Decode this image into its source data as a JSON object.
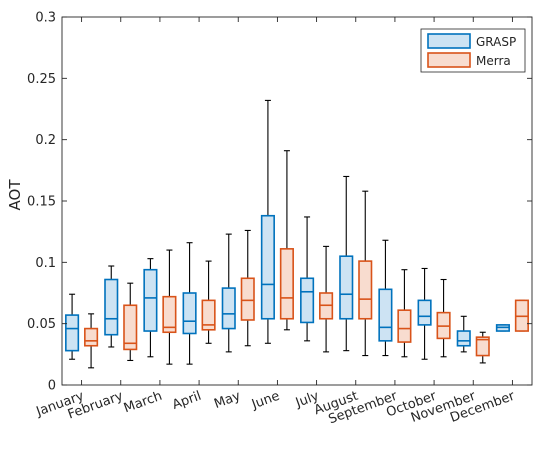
{
  "chart_data": {
    "type": "boxplot",
    "ylabel": "AOT",
    "xlabel": "",
    "ylim": [
      0,
      0.3
    ],
    "yticks": [
      0,
      0.05,
      0.1,
      0.15,
      0.2,
      0.25,
      0.3
    ],
    "ytick_labels": [
      "0",
      "0.05",
      "0.1",
      "0.15",
      "0.2",
      "0.25",
      "0.3"
    ],
    "categories": [
      "January",
      "February",
      "March",
      "April",
      "May",
      "June",
      "July",
      "August",
      "September",
      "October",
      "November",
      "December"
    ],
    "grid": false,
    "legend_position": "top-right",
    "series": [
      {
        "name": "GRASP",
        "edge_color": "#0072BD",
        "fill_color": "#CDE3F3",
        "boxes": [
          {
            "min": 0.021,
            "q1": 0.028,
            "median": 0.046,
            "q3": 0.057,
            "max": 0.074
          },
          {
            "min": 0.031,
            "q1": 0.041,
            "median": 0.054,
            "q3": 0.086,
            "max": 0.097
          },
          {
            "min": 0.023,
            "q1": 0.044,
            "median": 0.071,
            "q3": 0.094,
            "max": 0.103
          },
          {
            "min": 0.017,
            "q1": 0.042,
            "median": 0.052,
            "q3": 0.075,
            "max": 0.116
          },
          {
            "min": 0.027,
            "q1": 0.046,
            "median": 0.058,
            "q3": 0.079,
            "max": 0.123
          },
          {
            "min": 0.034,
            "q1": 0.054,
            "median": 0.082,
            "q3": 0.138,
            "max": 0.232
          },
          {
            "min": 0.036,
            "q1": 0.051,
            "median": 0.076,
            "q3": 0.087,
            "max": 0.137
          },
          {
            "min": 0.028,
            "q1": 0.054,
            "median": 0.074,
            "q3": 0.105,
            "max": 0.17
          },
          {
            "min": 0.024,
            "q1": 0.036,
            "median": 0.047,
            "q3": 0.078,
            "max": 0.118
          },
          {
            "min": 0.021,
            "q1": 0.049,
            "median": 0.056,
            "q3": 0.069,
            "max": 0.095
          },
          {
            "min": 0.027,
            "q1": 0.032,
            "median": 0.036,
            "q3": 0.044,
            "max": 0.056
          },
          {
            "min": 0.044,
            "q1": 0.044,
            "median": 0.047,
            "q3": 0.049,
            "max": 0.049
          }
        ]
      },
      {
        "name": "Merra",
        "edge_color": "#D95319",
        "fill_color": "#F8DCCF",
        "boxes": [
          {
            "min": 0.014,
            "q1": 0.032,
            "median": 0.036,
            "q3": 0.046,
            "max": 0.058
          },
          {
            "min": 0.02,
            "q1": 0.029,
            "median": 0.034,
            "q3": 0.065,
            "max": 0.083
          },
          {
            "min": 0.017,
            "q1": 0.043,
            "median": 0.047,
            "q3": 0.072,
            "max": 0.11
          },
          {
            "min": 0.034,
            "q1": 0.045,
            "median": 0.049,
            "q3": 0.069,
            "max": 0.101
          },
          {
            "min": 0.032,
            "q1": 0.053,
            "median": 0.069,
            "q3": 0.087,
            "max": 0.126
          },
          {
            "min": 0.045,
            "q1": 0.054,
            "median": 0.071,
            "q3": 0.111,
            "max": 0.191
          },
          {
            "min": 0.027,
            "q1": 0.054,
            "median": 0.065,
            "q3": 0.075,
            "max": 0.113
          },
          {
            "min": 0.024,
            "q1": 0.054,
            "median": 0.07,
            "q3": 0.101,
            "max": 0.158
          },
          {
            "min": 0.023,
            "q1": 0.035,
            "median": 0.046,
            "q3": 0.061,
            "max": 0.094
          },
          {
            "min": 0.023,
            "q1": 0.038,
            "median": 0.048,
            "q3": 0.059,
            "max": 0.086
          },
          {
            "min": 0.018,
            "q1": 0.024,
            "median": 0.037,
            "q3": 0.039,
            "max": 0.043
          },
          {
            "min": 0.044,
            "q1": 0.044,
            "median": 0.056,
            "q3": 0.069,
            "max": 0.069
          }
        ]
      }
    ]
  }
}
